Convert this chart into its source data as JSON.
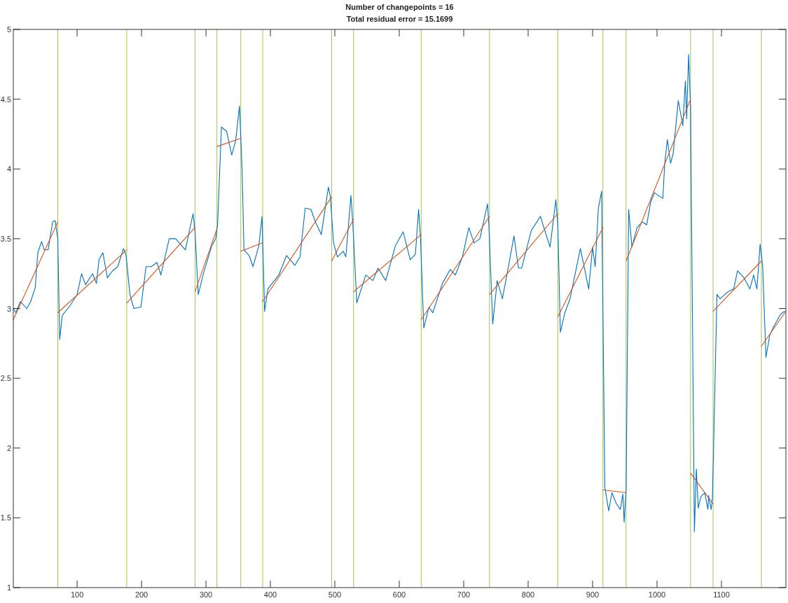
{
  "chart_data": {
    "type": "line",
    "title": "Number of changepoints = 16",
    "subtitle": "Total residual error = 15.1699",
    "xlim": [
      1,
      1200
    ],
    "xticks": [
      100,
      200,
      300,
      400,
      500,
      600,
      700,
      800,
      900,
      1000,
      1100
    ],
    "ylim": [
      1,
      5
    ],
    "yticks": [
      1,
      1.5,
      2,
      2.5,
      3,
      3.5,
      4,
      4.5,
      5
    ],
    "grid": false,
    "marker": "none",
    "line_style": "solid",
    "series": [
      {
        "color": "#0072bd",
        "x": [
          1,
          5,
          12,
          22,
          28,
          35,
          39,
          45,
          49,
          55,
          62,
          66,
          70,
          73,
          77,
          89,
          100,
          107,
          113,
          124,
          130,
          134,
          140,
          147,
          155,
          163,
          172,
          176,
          182,
          188,
          199,
          207,
          215,
          224,
          230,
          243,
          253,
          268,
          280,
          283,
          288,
          296,
          309,
          315,
          318,
          324,
          332,
          340,
          346,
          352,
          356,
          359,
          367,
          373,
          382,
          387,
          391,
          396,
          413,
          425,
          438,
          446,
          454,
          463,
          469,
          479,
          490,
          493,
          498,
          504,
          513,
          517,
          525,
          528,
          534,
          548,
          559,
          567,
          579,
          594,
          606,
          617,
          625,
          630,
          633,
          638,
          646,
          652,
          667,
          679,
          687,
          698,
          708,
          716,
          725,
          737,
          739,
          745,
          752,
          760,
          769,
          778,
          785,
          790,
          805,
          819,
          834,
          843,
          846,
          850,
          857,
          865,
          881,
          894,
          900,
          904,
          909,
          914,
          919,
          925,
          930,
          937,
          943,
          947,
          949,
          952,
          956,
          961,
          969,
          977,
          984,
          990,
          996,
          1002,
          1009,
          1012,
          1016,
          1021,
          1025,
          1033,
          1040,
          1044,
          1046,
          1049,
          1052,
          1058,
          1061,
          1064,
          1068,
          1074,
          1079,
          1080,
          1084,
          1086,
          1093,
          1098,
          1110,
          1119,
          1125,
          1135,
          1144,
          1150,
          1155,
          1160,
          1164,
          1169,
          1175,
          1181,
          1192,
          1198
        ],
        "values": [
          3.0,
          2.97,
          3.05,
          3.0,
          3.05,
          3.15,
          3.4,
          3.48,
          3.42,
          3.42,
          3.62,
          3.63,
          3.5,
          2.78,
          2.95,
          3.02,
          3.1,
          3.25,
          3.17,
          3.25,
          3.18,
          3.35,
          3.4,
          3.22,
          3.27,
          3.3,
          3.43,
          3.38,
          3.1,
          3.0,
          3.01,
          3.3,
          3.3,
          3.33,
          3.24,
          3.5,
          3.5,
          3.42,
          3.68,
          3.55,
          3.1,
          3.25,
          3.45,
          3.5,
          3.6,
          4.3,
          4.27,
          4.1,
          4.2,
          4.45,
          4.0,
          3.42,
          3.38,
          3.3,
          3.45,
          3.66,
          2.98,
          3.14,
          3.24,
          3.38,
          3.31,
          3.37,
          3.72,
          3.71,
          3.63,
          3.53,
          3.87,
          3.8,
          3.47,
          3.37,
          3.41,
          3.37,
          3.81,
          3.6,
          3.04,
          3.24,
          3.2,
          3.29,
          3.2,
          3.45,
          3.55,
          3.35,
          3.39,
          3.71,
          3.5,
          2.86,
          3.01,
          2.97,
          3.18,
          3.28,
          3.24,
          3.37,
          3.58,
          3.47,
          3.5,
          3.75,
          3.6,
          2.89,
          3.2,
          3.07,
          3.29,
          3.52,
          3.29,
          3.29,
          3.56,
          3.66,
          3.44,
          3.78,
          3.6,
          2.83,
          2.97,
          3.07,
          3.43,
          3.14,
          3.44,
          3.3,
          3.72,
          3.84,
          1.72,
          1.55,
          1.68,
          1.6,
          1.56,
          1.67,
          1.47,
          1.7,
          3.71,
          3.44,
          3.58,
          3.62,
          3.6,
          3.76,
          3.83,
          3.81,
          3.79,
          4.04,
          4.21,
          4.04,
          4.11,
          4.49,
          4.31,
          4.63,
          4.36,
          4.82,
          4.44,
          1.4,
          1.85,
          1.57,
          1.65,
          1.68,
          1.56,
          1.66,
          1.56,
          1.64,
          3.1,
          3.07,
          3.12,
          3.14,
          3.27,
          3.22,
          3.14,
          3.24,
          3.14,
          3.46,
          3.3,
          2.65,
          2.81,
          2.87,
          2.96,
          2.98
        ]
      },
      {
        "color": "#d95319",
        "x": [
          1,
          70,
          null,
          70,
          177,
          null,
          177,
          283,
          null,
          283,
          317,
          null,
          317,
          354,
          null,
          354,
          388,
          null,
          388,
          495,
          null,
          495,
          529,
          null,
          529,
          634,
          null,
          634,
          740,
          null,
          740,
          846,
          null,
          846,
          916,
          null,
          916,
          952,
          null,
          952,
          1052,
          null,
          1052,
          1087,
          null,
          1087,
          1162,
          null,
          1162,
          1200
        ],
        "values": [
          2.92,
          3.62,
          null,
          2.97,
          3.42,
          null,
          3.04,
          3.58,
          null,
          3.12,
          3.57,
          null,
          4.16,
          4.22,
          null,
          3.41,
          3.47,
          null,
          3.05,
          3.8,
          null,
          3.34,
          3.64,
          null,
          3.12,
          3.53,
          null,
          2.92,
          3.66,
          null,
          3.1,
          3.68,
          null,
          2.94,
          3.58,
          null,
          1.7,
          1.68,
          null,
          3.34,
          4.5,
          null,
          1.82,
          1.6,
          null,
          2.98,
          3.34,
          null,
          2.73,
          2.98
        ]
      }
    ],
    "ref_lines": [
      {
        "axis": "x",
        "value": 70,
        "color": "#a4c24a"
      },
      {
        "axis": "x",
        "value": 177,
        "color": "#a4c24a"
      },
      {
        "axis": "x",
        "value": 283,
        "color": "#a4c24a"
      },
      {
        "axis": "x",
        "value": 317,
        "color": "#a4c24a"
      },
      {
        "axis": "x",
        "value": 354,
        "color": "#a4c24a"
      },
      {
        "axis": "x",
        "value": 388,
        "color": "#a4c24a"
      },
      {
        "axis": "x",
        "value": 495,
        "color": "#a4c24a"
      },
      {
        "axis": "x",
        "value": 529,
        "color": "#a4c24a"
      },
      {
        "axis": "x",
        "value": 634,
        "color": "#a4c24a"
      },
      {
        "axis": "x",
        "value": 740,
        "color": "#a4c24a"
      },
      {
        "axis": "x",
        "value": 846,
        "color": "#a4c24a"
      },
      {
        "axis": "x",
        "value": 916,
        "color": "#a4c24a"
      },
      {
        "axis": "x",
        "value": 952,
        "color": "#a4c24a"
      },
      {
        "axis": "x",
        "value": 1052,
        "color": "#a4c24a"
      },
      {
        "axis": "x",
        "value": 1087,
        "color": "#a4c24a"
      },
      {
        "axis": "x",
        "value": 1162,
        "color": "#a4c24a"
      }
    ]
  }
}
